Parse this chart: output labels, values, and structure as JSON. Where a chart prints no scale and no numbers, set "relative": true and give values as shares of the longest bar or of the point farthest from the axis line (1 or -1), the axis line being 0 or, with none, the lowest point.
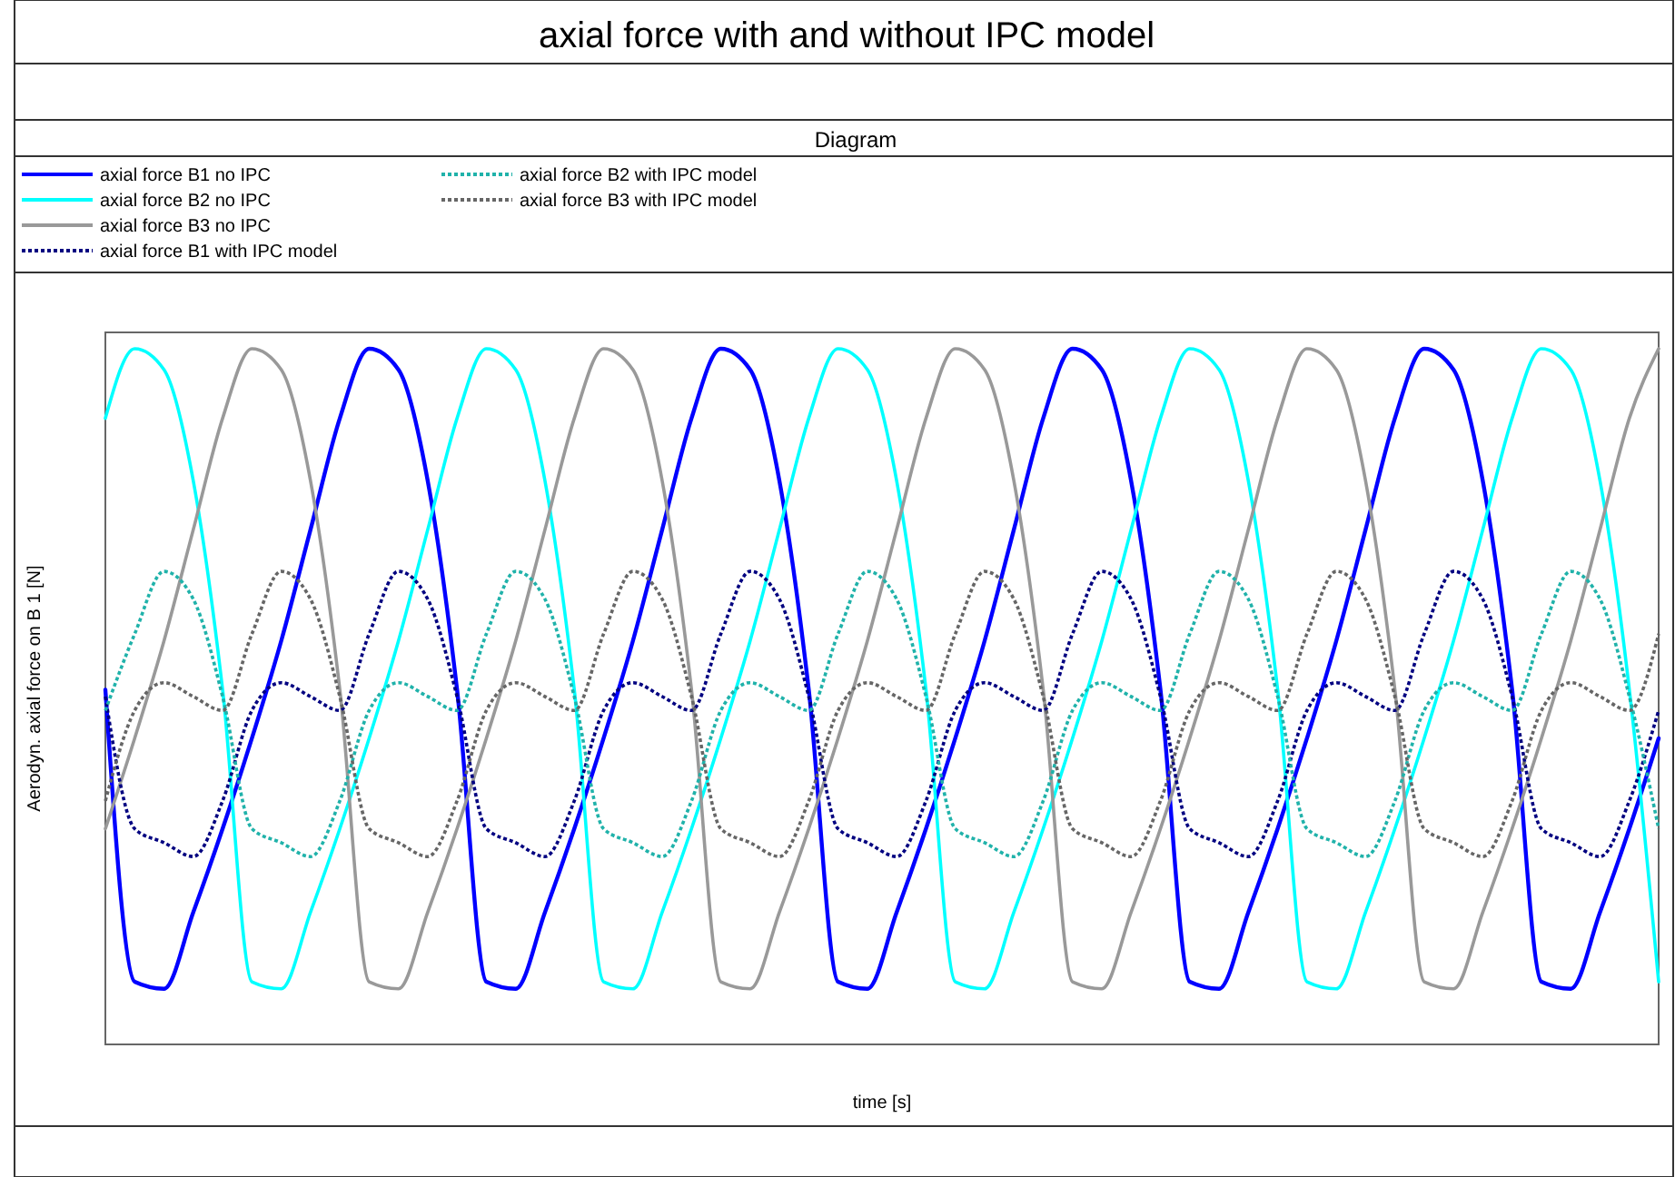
{
  "chart_data": {
    "type": "line",
    "title": "axial force with and without IPC model",
    "subtitle": "Diagram",
    "xlabel": "time [s]",
    "ylabel": "Aerodyn. axial force on B 1 [N]",
    "relative": true,
    "legend": "top",
    "categories": [
      null,
      null,
      null,
      null,
      null,
      null,
      null,
      null,
      null,
      null,
      null,
      null,
      null,
      null,
      null,
      null,
      null,
      null,
      null,
      null,
      null,
      null,
      null,
      null,
      null,
      null,
      null,
      null,
      null,
      null,
      null,
      null,
      null,
      null,
      null,
      null,
      null,
      null,
      null,
      null,
      null,
      null,
      null,
      null,
      null,
      null,
      null,
      null,
      null,
      null,
      null,
      null,
      null,
      null
    ],
    "series": [
      {
        "name": "axial force B1 no IPC",
        "color": "#0000ff",
        "line_style": "solid",
        "values": [
          0.51,
          0.09,
          0.08,
          0.19,
          0.31,
          0.44,
          0.58,
          0.74,
          0.9,
          1.0,
          0.97,
          0.81,
          0.51,
          0.09,
          0.08,
          0.19,
          0.31,
          0.44,
          0.58,
          0.74,
          0.9,
          1.0,
          0.97,
          0.81,
          0.51,
          0.09,
          0.08,
          0.19,
          0.31,
          0.44,
          0.58,
          0.74,
          0.9,
          1.0,
          0.97,
          0.81,
          0.51,
          0.09,
          0.08,
          0.19,
          0.31,
          0.44,
          0.58,
          0.74,
          0.9,
          1.0,
          0.97,
          0.81,
          0.51,
          0.09,
          0.08,
          0.19,
          0.31,
          0.44
        ]
      },
      {
        "name": "axial force B2 no IPC",
        "color": "#00ffff",
        "line_style": "solid",
        "values": [
          0.9,
          1.0,
          0.97,
          0.81,
          0.51,
          0.09,
          0.08,
          0.19,
          0.31,
          0.44,
          0.58,
          0.74,
          0.9,
          1.0,
          0.97,
          0.81,
          0.51,
          0.09,
          0.08,
          0.19,
          0.31,
          0.44,
          0.58,
          0.74,
          0.9,
          1.0,
          0.97,
          0.81,
          0.51,
          0.09,
          0.08,
          0.19,
          0.31,
          0.44,
          0.58,
          0.74,
          0.9,
          1.0,
          0.97,
          0.81,
          0.51,
          0.09,
          0.08,
          0.19,
          0.31,
          0.44,
          0.58,
          0.74,
          0.9,
          1.0,
          0.97,
          0.81,
          0.51,
          0.09
        ]
      },
      {
        "name": "axial force B3 no IPC",
        "color": "#999999",
        "line_style": "solid",
        "values": [
          0.31,
          0.44,
          0.58,
          0.74,
          0.9,
          1.0,
          0.97,
          0.81,
          0.51,
          0.09,
          0.08,
          0.19,
          0.31,
          0.44,
          0.58,
          0.74,
          0.9,
          1.0,
          0.97,
          0.81,
          0.51,
          0.09,
          0.08,
          0.19,
          0.31,
          0.44,
          0.58,
          0.74,
          0.9,
          1.0,
          0.97,
          0.81,
          0.51,
          0.09,
          0.08,
          0.19,
          0.31,
          0.44,
          0.58,
          0.74,
          0.9,
          1.0,
          0.97,
          0.81,
          0.51,
          0.09,
          0.08,
          0.19,
          0.31,
          0.44,
          0.58,
          0.74,
          0.9,
          1.0
        ]
      },
      {
        "name": "axial force B1 with IPC model",
        "color": "#000080",
        "line_style": "dotted",
        "values": [
          0.5,
          0.31,
          0.29,
          0.27,
          0.35,
          0.48,
          0.52,
          0.5,
          0.48,
          0.59,
          0.68,
          0.64,
          0.5,
          0.31,
          0.29,
          0.27,
          0.35,
          0.48,
          0.52,
          0.5,
          0.48,
          0.59,
          0.68,
          0.64,
          0.5,
          0.31,
          0.29,
          0.27,
          0.35,
          0.48,
          0.52,
          0.5,
          0.48,
          0.59,
          0.68,
          0.64,
          0.5,
          0.31,
          0.29,
          0.27,
          0.35,
          0.48,
          0.52,
          0.5,
          0.48,
          0.59,
          0.68,
          0.64,
          0.5,
          0.31,
          0.29,
          0.27,
          0.35,
          0.48
        ]
      },
      {
        "name": "axial force B2 with IPC model",
        "color": "#20b2aa",
        "line_style": "dotted",
        "values": [
          0.48,
          0.59,
          0.68,
          0.64,
          0.5,
          0.31,
          0.29,
          0.27,
          0.35,
          0.48,
          0.52,
          0.5,
          0.48,
          0.59,
          0.68,
          0.64,
          0.5,
          0.31,
          0.29,
          0.27,
          0.35,
          0.48,
          0.52,
          0.5,
          0.48,
          0.59,
          0.68,
          0.64,
          0.5,
          0.31,
          0.29,
          0.27,
          0.35,
          0.48,
          0.52,
          0.5,
          0.48,
          0.59,
          0.68,
          0.64,
          0.5,
          0.31,
          0.29,
          0.27,
          0.35,
          0.48,
          0.52,
          0.5,
          0.48,
          0.59,
          0.68,
          0.64,
          0.5,
          0.31
        ]
      },
      {
        "name": "axial force B3 with IPC model",
        "color": "#666666",
        "line_style": "dotted",
        "values": [
          0.35,
          0.48,
          0.52,
          0.5,
          0.48,
          0.59,
          0.68,
          0.64,
          0.5,
          0.31,
          0.29,
          0.27,
          0.35,
          0.48,
          0.52,
          0.5,
          0.48,
          0.59,
          0.68,
          0.64,
          0.5,
          0.31,
          0.29,
          0.27,
          0.35,
          0.48,
          0.52,
          0.5,
          0.48,
          0.59,
          0.68,
          0.64,
          0.5,
          0.31,
          0.29,
          0.27,
          0.35,
          0.48,
          0.52,
          0.5,
          0.48,
          0.59,
          0.68,
          0.64,
          0.5,
          0.31,
          0.29,
          0.27,
          0.35,
          0.48,
          0.52,
          0.5,
          0.48,
          0.59
        ]
      }
    ]
  }
}
